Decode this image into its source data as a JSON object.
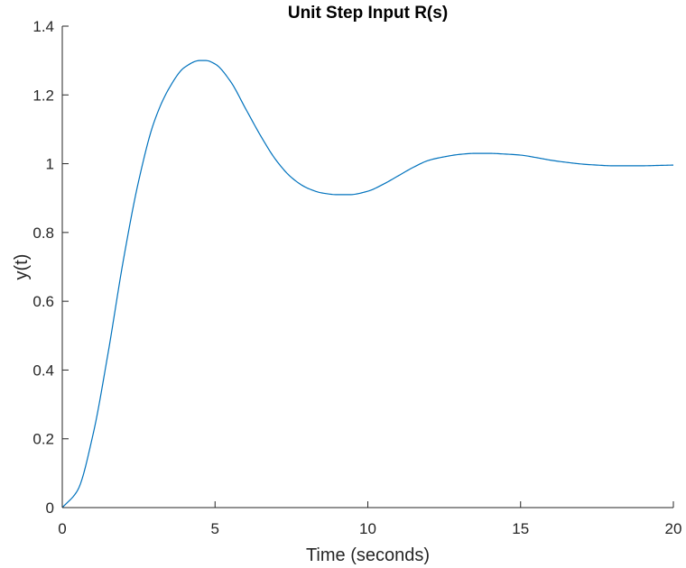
{
  "chart_data": {
    "type": "line",
    "title": "Unit Step Input R(s)",
    "xlabel": "Time (seconds)",
    "ylabel": "y(t)",
    "xlim": [
      0,
      20
    ],
    "ylim": [
      0,
      1.4
    ],
    "xticks": [
      0,
      5,
      10,
      15,
      20
    ],
    "xtick_labels": [
      "0",
      "5",
      "10",
      "15",
      "20"
    ],
    "yticks": [
      0,
      0.2,
      0.4,
      0.6,
      0.8,
      1,
      1.2,
      1.4
    ],
    "ytick_labels": [
      "0",
      "0.2",
      "0.4",
      "0.6",
      "0.8",
      "1",
      "1.2",
      "1.4"
    ],
    "grid": false,
    "series": [
      {
        "color": "#0072BD",
        "x": [
          0,
          0.5,
          1,
          1.5,
          2,
          2.5,
          3,
          3.5,
          4,
          4.5,
          4.7,
          5,
          5.5,
          6,
          6.5,
          7,
          7.5,
          8,
          8.5,
          9,
          9.4,
          10,
          10.5,
          11,
          11.5,
          12,
          12.5,
          13,
          13.5,
          14,
          14.5,
          15,
          15.5,
          16,
          16.5,
          17,
          17.5,
          18,
          18.5,
          19,
          19.5,
          20
        ],
        "y": [
          0,
          0.05,
          0.21,
          0.45,
          0.72,
          0.95,
          1.12,
          1.22,
          1.28,
          1.3,
          1.3,
          1.29,
          1.24,
          1.16,
          1.08,
          1.01,
          0.96,
          0.93,
          0.915,
          0.91,
          0.91,
          0.92,
          0.94,
          0.965,
          0.99,
          1.01,
          1.02,
          1.027,
          1.03,
          1.03,
          1.028,
          1.025,
          1.018,
          1.01,
          1.004,
          0.999,
          0.996,
          0.994,
          0.994,
          0.994,
          0.995,
          0.996
        ]
      }
    ]
  }
}
